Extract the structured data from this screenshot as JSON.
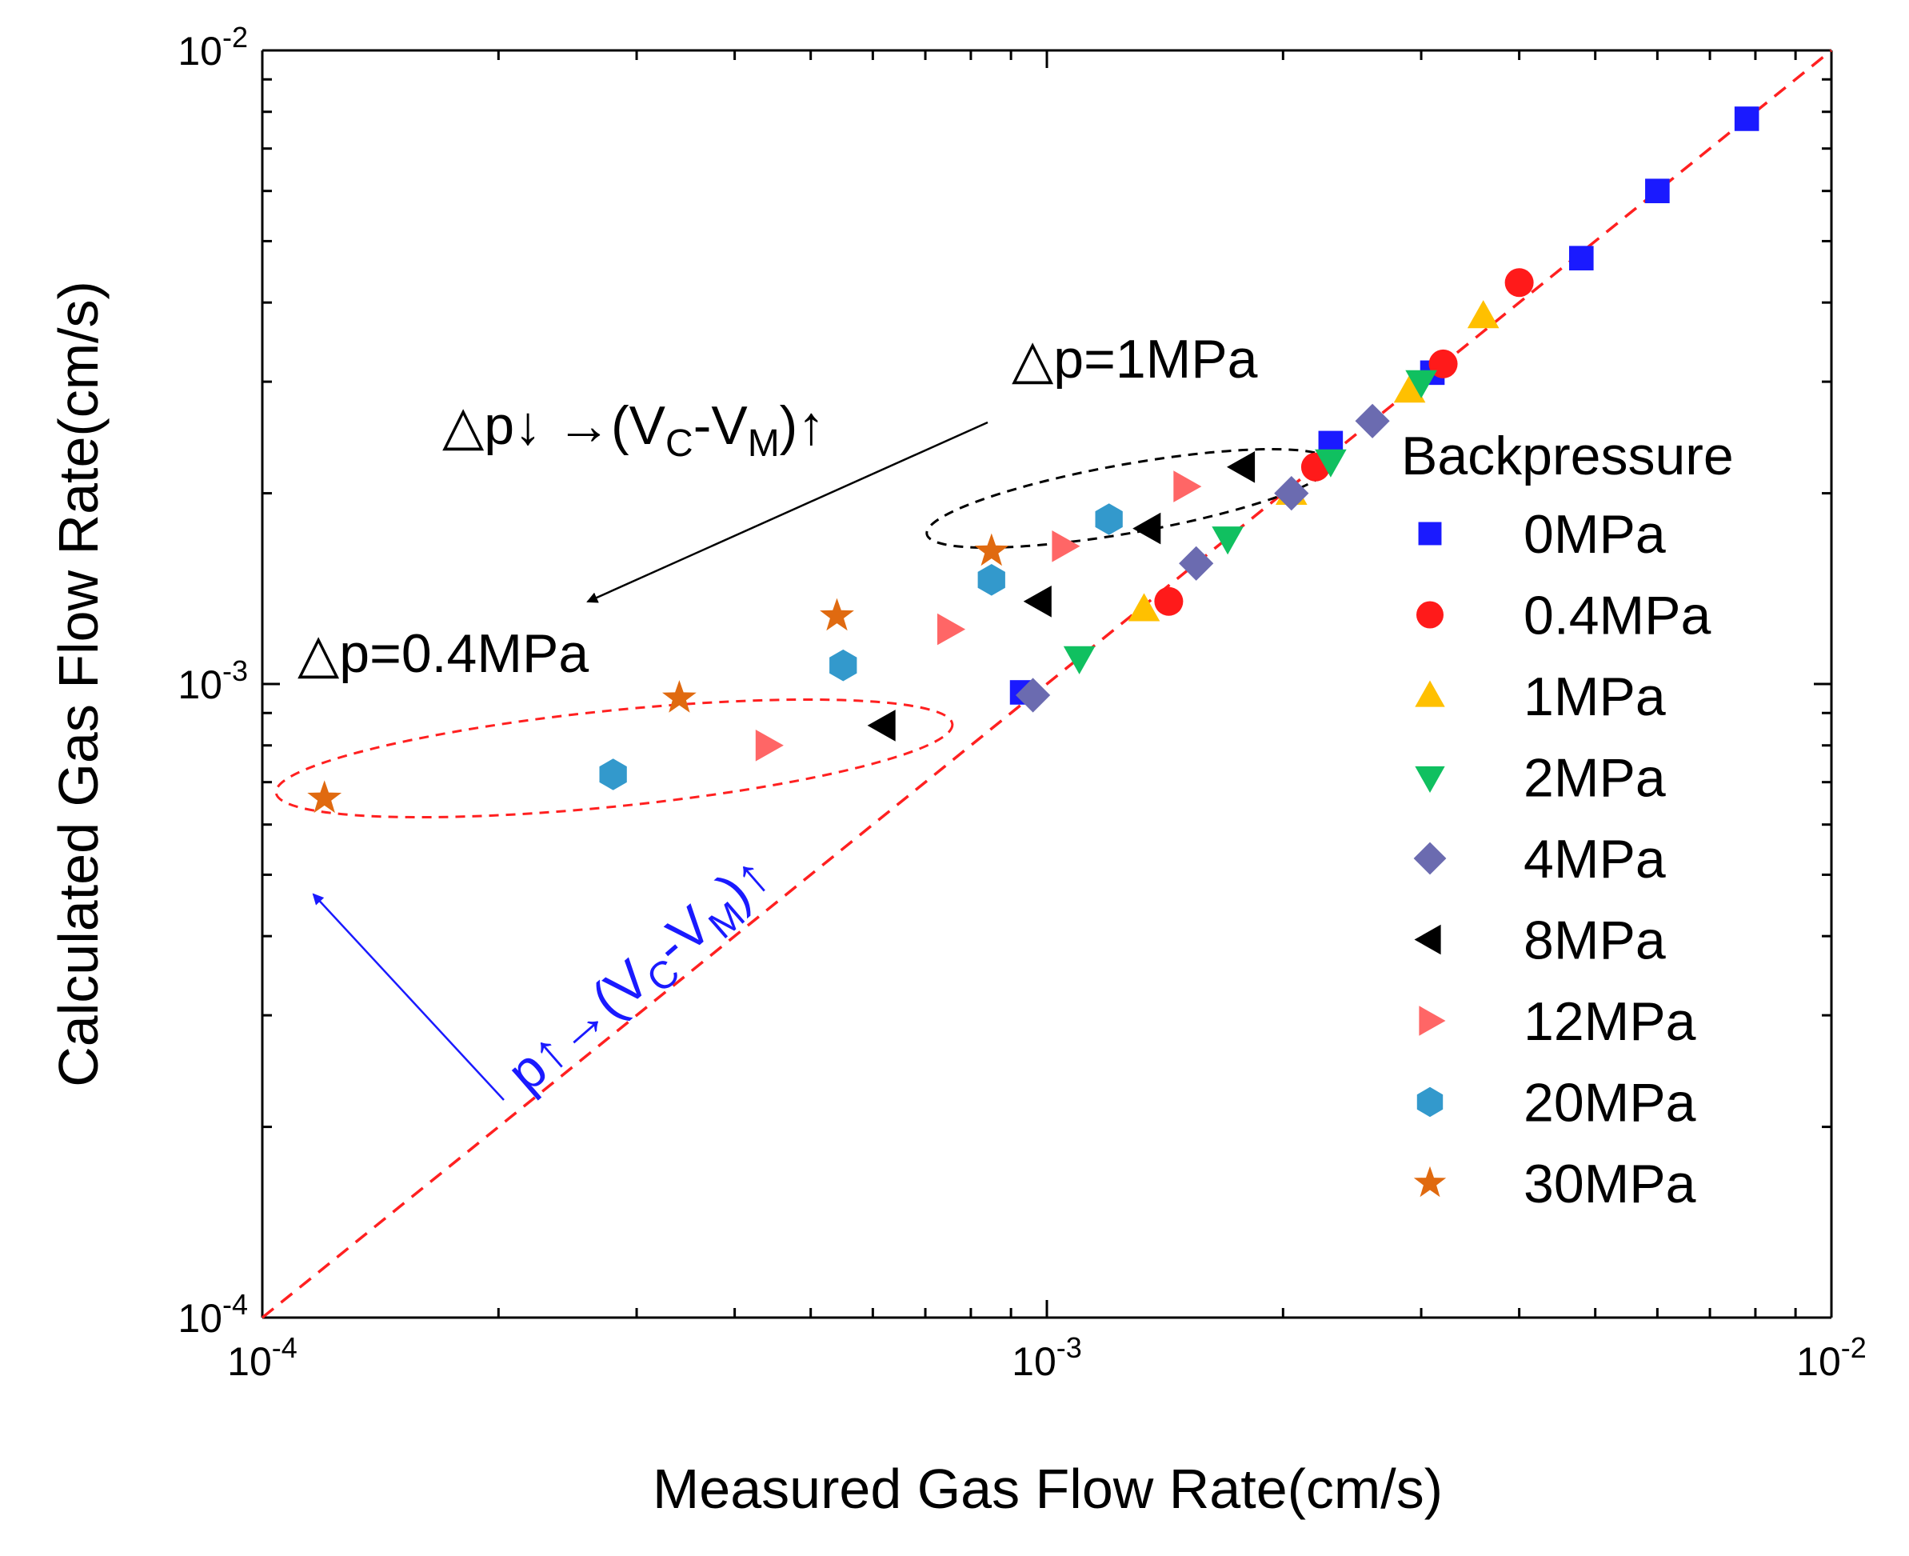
{
  "chart_data": {
    "type": "scatter",
    "xscale": "log",
    "yscale": "log",
    "xlim": [
      0.0001,
      0.01
    ],
    "ylim": [
      0.0001,
      0.01
    ],
    "xlabel": "Measured Gas Flow Rate(cm/s)",
    "ylabel": "Calculated Gas Flow Rate(cm/s)",
    "x_ticks": [
      {
        "value": 0.0001,
        "base": "10",
        "exp": "-4"
      },
      {
        "value": 0.001,
        "base": "10",
        "exp": "-3"
      },
      {
        "value": 0.01,
        "base": "10",
        "exp": "-2"
      }
    ],
    "y_ticks": [
      {
        "value": 0.0001,
        "base": "10",
        "exp": "-4"
      },
      {
        "value": 0.001,
        "base": "10",
        "exp": "-3"
      },
      {
        "value": 0.01,
        "base": "10",
        "exp": "-2"
      }
    ],
    "grid": false,
    "legend": {
      "title": "Backpressure",
      "position": "right"
    },
    "reference_line": {
      "style": "dashed",
      "color": "#ff2020",
      "x": [
        0.0001,
        0.01
      ],
      "y": [
        0.0001,
        0.01
      ]
    },
    "series": [
      {
        "name": "0MPa",
        "marker": "square",
        "color": "#1a1aff",
        "points": [
          [
            0.00093,
            0.00097
          ],
          [
            0.0023,
            0.0024
          ],
          [
            0.0031,
            0.0031
          ],
          [
            0.0048,
            0.0047
          ],
          [
            0.006,
            0.006
          ],
          [
            0.0078,
            0.0078
          ]
        ]
      },
      {
        "name": "0.4MPa",
        "marker": "circle",
        "color": "#ff1a1a",
        "points": [
          [
            0.00143,
            0.00135
          ],
          [
            0.0022,
            0.0022
          ],
          [
            0.0032,
            0.0032
          ],
          [
            0.004,
            0.0043
          ]
        ]
      },
      {
        "name": "1MPa",
        "marker": "triangle-up",
        "color": "#ffc000",
        "points": [
          [
            0.00133,
            0.00131
          ],
          [
            0.00205,
            0.002
          ],
          [
            0.0029,
            0.0029
          ],
          [
            0.0036,
            0.0038
          ]
        ]
      },
      {
        "name": "2MPa",
        "marker": "triangle-down",
        "color": "#10c060",
        "points": [
          [
            0.0011,
            0.0011
          ],
          [
            0.0017,
            0.0017
          ],
          [
            0.0023,
            0.00225
          ],
          [
            0.003,
            0.003
          ]
        ]
      },
      {
        "name": "4MPa",
        "marker": "diamond",
        "color": "#6b6bb0",
        "points": [
          [
            0.00096,
            0.00096
          ],
          [
            0.00155,
            0.00155
          ],
          [
            0.00205,
            0.002
          ],
          [
            0.0026,
            0.0026
          ]
        ]
      },
      {
        "name": "8MPa",
        "marker": "triangle-left",
        "color": "#000000",
        "points": [
          [
            0.00062,
            0.00086
          ],
          [
            0.00098,
            0.00135
          ],
          [
            0.00135,
            0.00176
          ],
          [
            0.00178,
            0.0022
          ]
        ]
      },
      {
        "name": "12MPa",
        "marker": "triangle-right",
        "color": "#ff6666",
        "points": [
          [
            0.00044,
            0.0008
          ],
          [
            0.00075,
            0.00122
          ],
          [
            0.00105,
            0.00165
          ],
          [
            0.0015,
            0.00205
          ]
        ]
      },
      {
        "name": "20MPa",
        "marker": "hexagon",
        "color": "#3399cc",
        "points": [
          [
            0.00028,
            0.00072
          ],
          [
            0.00055,
            0.00107
          ],
          [
            0.00085,
            0.00146
          ],
          [
            0.0012,
            0.00182
          ]
        ]
      },
      {
        "name": "30MPa",
        "marker": "star",
        "color": "#e06a10",
        "points": [
          [
            0.00012,
            0.00066
          ],
          [
            0.00034,
            0.00095
          ],
          [
            0.00054,
            0.00128
          ],
          [
            0.00085,
            0.00162
          ]
        ]
      }
    ],
    "annotations": {
      "dp1": "△p=1MPa",
      "dp04": "△p=0.4MPa",
      "dp_down": {
        "prefix": "△p↓ →(V",
        "sub1": "C",
        "mid": "-V",
        "sub2": "M",
        "suffix": ")↑"
      },
      "p_up": {
        "prefix": "p↑→(V",
        "sub1": "C",
        "mid": "-V",
        "sub2": "M",
        "suffix": ")↑"
      }
    }
  }
}
